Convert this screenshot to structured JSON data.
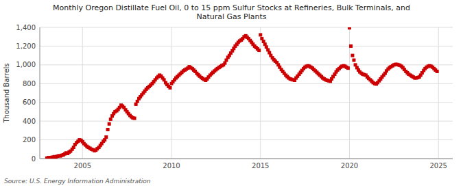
{
  "chart_data": {
    "type": "scatter",
    "title": "Monthly Oregon Distillate Fuel Oil, 0 to 15 ppm Sulfur Stocks at Refineries, Bulk Terminals, and\nNatural Gas Plants",
    "y_label": "Thousand Barrels",
    "annotations": [
      "Source: U.S. Energy Information Administration"
    ],
    "color": "#cc0000",
    "marker": "square",
    "grid": true,
    "xlim": [
      2002.6,
      2025.8
    ],
    "xticks": [
      2005,
      2010,
      2015,
      2020,
      2025
    ],
    "ylim": [
      0,
      1400
    ],
    "yticks": [
      0,
      200,
      400,
      600,
      800,
      {
        "value": 1000,
        "label": "1,000"
      },
      {
        "value": 1200,
        "label": "1,200"
      },
      {
        "value": 1400,
        "label": "1,400"
      }
    ],
    "x": [
      2003.0,
      2003.08,
      2003.17,
      2003.25,
      2003.33,
      2003.42,
      2003.5,
      2003.58,
      2003.67,
      2003.75,
      2003.83,
      2003.92,
      2004.0,
      2004.08,
      2004.17,
      2004.25,
      2004.33,
      2004.42,
      2004.5,
      2004.58,
      2004.67,
      2004.75,
      2004.83,
      2004.92,
      2005.0,
      2005.08,
      2005.17,
      2005.25,
      2005.33,
      2005.42,
      2005.5,
      2005.58,
      2005.67,
      2005.75,
      2005.83,
      2005.92,
      2006.0,
      2006.08,
      2006.17,
      2006.25,
      2006.33,
      2006.42,
      2006.5,
      2006.58,
      2006.67,
      2006.75,
      2006.83,
      2006.92,
      2007.0,
      2007.08,
      2007.17,
      2007.25,
      2007.33,
      2007.42,
      2007.5,
      2007.58,
      2007.67,
      2007.75,
      2007.83,
      2007.92,
      2008.0,
      2008.08,
      2008.17,
      2008.25,
      2008.33,
      2008.42,
      2008.5,
      2008.58,
      2008.67,
      2008.75,
      2008.83,
      2008.92,
      2009.0,
      2009.08,
      2009.17,
      2009.25,
      2009.33,
      2009.42,
      2009.5,
      2009.58,
      2009.67,
      2009.75,
      2009.83,
      2009.92,
      2010.0,
      2010.08,
      2010.17,
      2010.25,
      2010.33,
      2010.42,
      2010.5,
      2010.58,
      2010.67,
      2010.75,
      2010.83,
      2010.92,
      2011.0,
      2011.08,
      2011.17,
      2011.25,
      2011.33,
      2011.42,
      2011.5,
      2011.58,
      2011.67,
      2011.75,
      2011.83,
      2011.92,
      2012.0,
      2012.08,
      2012.17,
      2012.25,
      2012.33,
      2012.42,
      2012.5,
      2012.58,
      2012.67,
      2012.75,
      2012.83,
      2012.92,
      2013.0,
      2013.08,
      2013.17,
      2013.25,
      2013.33,
      2013.42,
      2013.5,
      2013.58,
      2013.67,
      2013.75,
      2013.83,
      2013.92,
      2014.0,
      2014.08,
      2014.17,
      2014.25,
      2014.33,
      2014.42,
      2014.5,
      2014.58,
      2014.67,
      2014.75,
      2014.83,
      2014.92,
      2015.0,
      2015.08,
      2015.17,
      2015.25,
      2015.33,
      2015.42,
      2015.5,
      2015.58,
      2015.67,
      2015.75,
      2015.83,
      2015.92,
      2016.0,
      2016.08,
      2016.17,
      2016.25,
      2016.33,
      2016.42,
      2016.5,
      2016.58,
      2016.67,
      2016.75,
      2016.83,
      2016.92,
      2017.0,
      2017.08,
      2017.17,
      2017.25,
      2017.33,
      2017.42,
      2017.5,
      2017.58,
      2017.67,
      2017.75,
      2017.83,
      2017.92,
      2018.0,
      2018.08,
      2018.17,
      2018.25,
      2018.33,
      2018.42,
      2018.5,
      2018.58,
      2018.67,
      2018.75,
      2018.83,
      2018.92,
      2019.0,
      2019.08,
      2019.17,
      2019.25,
      2019.33,
      2019.42,
      2019.5,
      2019.58,
      2019.67,
      2019.75,
      2019.83,
      2019.92,
      2020.0,
      2020.08,
      2020.17,
      2020.25,
      2020.33,
      2020.42,
      2020.5,
      2020.58,
      2020.67,
      2020.75,
      2020.83,
      2020.92,
      2021.0,
      2021.08,
      2021.17,
      2021.25,
      2021.33,
      2021.42,
      2021.5,
      2021.58,
      2021.67,
      2021.75,
      2021.83,
      2021.92,
      2022.0,
      2022.08,
      2022.17,
      2022.25,
      2022.33,
      2022.42,
      2022.5,
      2022.58,
      2022.67,
      2022.75,
      2022.83,
      2022.92,
      2023.0,
      2023.08,
      2023.17,
      2023.25,
      2023.33,
      2023.42,
      2023.5,
      2023.58,
      2023.67,
      2023.75,
      2023.83,
      2023.92,
      2024.0,
      2024.08,
      2024.17,
      2024.25,
      2024.33,
      2024.42,
      2024.5,
      2024.58,
      2024.67,
      2024.75,
      2024.83,
      2024.92
    ],
    "values": [
      5,
      10,
      8,
      12,
      15,
      20,
      18,
      25,
      30,
      28,
      35,
      40,
      50,
      60,
      55,
      70,
      80,
      100,
      120,
      150,
      170,
      185,
      200,
      195,
      180,
      160,
      145,
      130,
      120,
      110,
      100,
      95,
      85,
      90,
      105,
      120,
      140,
      160,
      185,
      200,
      230,
      310,
      370,
      420,
      455,
      480,
      500,
      510,
      525,
      545,
      570,
      560,
      545,
      520,
      500,
      480,
      460,
      445,
      435,
      430,
      580,
      610,
      640,
      660,
      680,
      700,
      720,
      740,
      755,
      770,
      785,
      800,
      820,
      840,
      860,
      875,
      890,
      880,
      860,
      840,
      810,
      790,
      770,
      755,
      800,
      820,
      840,
      860,
      875,
      890,
      905,
      920,
      935,
      945,
      955,
      965,
      980,
      970,
      960,
      945,
      930,
      910,
      895,
      880,
      865,
      855,
      845,
      835,
      850,
      870,
      890,
      905,
      920,
      935,
      948,
      960,
      972,
      982,
      992,
      1000,
      1020,
      1050,
      1080,
      1100,
      1125,
      1150,
      1175,
      1200,
      1220,
      1240,
      1255,
      1265,
      1280,
      1300,
      1310,
      1295,
      1280,
      1260,
      1240,
      1220,
      1200,
      1185,
      1170,
      1155,
      1320,
      1280,
      1250,
      1220,
      1190,
      1160,
      1130,
      1100,
      1075,
      1055,
      1040,
      1025,
      1000,
      975,
      950,
      930,
      910,
      890,
      875,
      860,
      850,
      845,
      840,
      835,
      860,
      880,
      900,
      920,
      940,
      960,
      975,
      985,
      990,
      985,
      975,
      965,
      950,
      935,
      920,
      905,
      890,
      875,
      860,
      850,
      840,
      835,
      830,
      825,
      850,
      875,
      900,
      925,
      945,
      960,
      975,
      985,
      990,
      985,
      975,
      965,
      1395,
      1200,
      1100,
      1050,
      1000,
      970,
      945,
      925,
      910,
      900,
      895,
      890,
      870,
      855,
      840,
      825,
      810,
      800,
      795,
      810,
      830,
      850,
      870,
      890,
      910,
      935,
      955,
      970,
      980,
      990,
      1000,
      1005,
      1005,
      1000,
      995,
      985,
      970,
      950,
      930,
      915,
      900,
      890,
      880,
      870,
      860,
      860,
      865,
      870,
      890,
      915,
      940,
      960,
      975,
      985,
      990,
      985,
      975,
      960,
      945,
      930
    ]
  }
}
